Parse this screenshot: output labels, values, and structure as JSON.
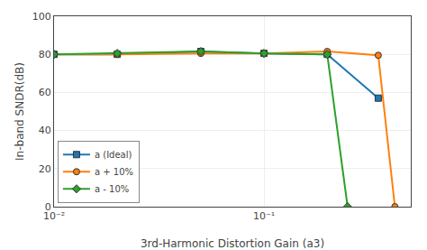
{
  "chart_data": {
    "type": "line",
    "xlabel": "3rd-Harmonic Distortion Gain (a3)",
    "ylabel": "In-band SNDR(dB)",
    "log": "x",
    "xlim": [
      0.01,
      0.5
    ],
    "xticks": [
      {
        "value": 0.01,
        "label": "10⁻²"
      },
      {
        "value": 0.1,
        "label": "10⁻¹"
      }
    ],
    "ylim": [
      0,
      100
    ],
    "yticks": [
      0,
      20,
      40,
      60,
      80,
      100
    ],
    "grid": true,
    "legend": "lower left",
    "series": [
      {
        "name": "a (Ideal)",
        "marker": "square",
        "x": [
          0.01,
          0.02,
          0.05,
          0.1,
          0.2,
          0.35
        ],
        "values": [
          80.0,
          80.0,
          81.5,
          80.5,
          80.0,
          57.0
        ]
      },
      {
        "name": "a + 10%",
        "marker": "circle",
        "x": [
          0.01,
          0.02,
          0.05,
          0.1,
          0.2,
          0.35,
          0.42
        ],
        "values": [
          80.0,
          80.0,
          80.5,
          80.5,
          81.5,
          79.5,
          0.0
        ]
      },
      {
        "name": "a - 10%",
        "marker": "diamond",
        "x": [
          0.01,
          0.02,
          0.05,
          0.1,
          0.2,
          0.25
        ],
        "values": [
          80.0,
          80.5,
          81.5,
          80.5,
          80.0,
          0.0
        ]
      }
    ]
  }
}
